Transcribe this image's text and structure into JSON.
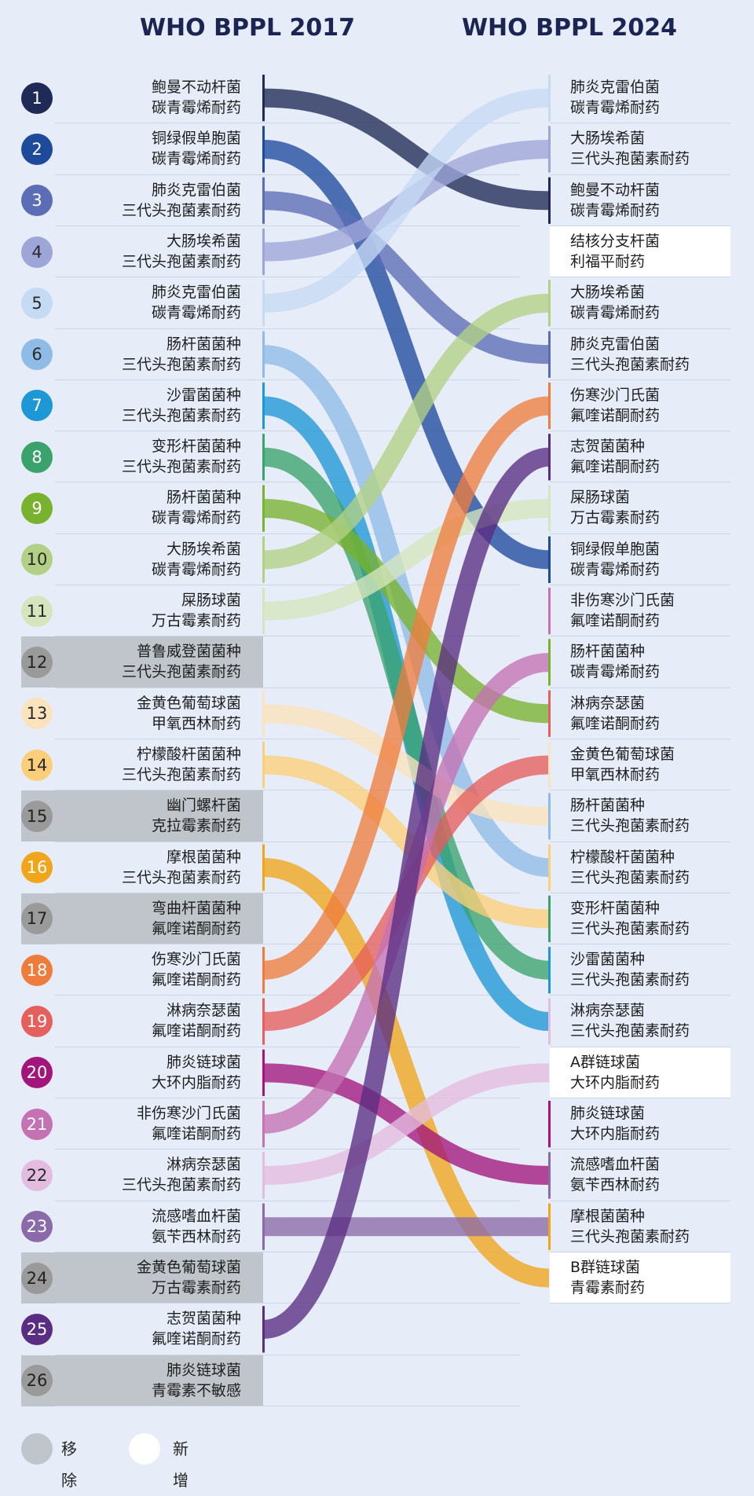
{
  "header": {
    "left_title": "WHO BPPL 2017",
    "right_title": "WHO BPPL 2024"
  },
  "left_items": [
    {
      "num": "1",
      "l1": "鲍曼不动杆菌",
      "l2": "碳青霉烯耐药",
      "color": "#1f2a56",
      "removed": false,
      "target": 3
    },
    {
      "num": "2",
      "l1": "铜绿假单胞菌",
      "l2": "碳青霉烯耐药",
      "color": "#1e4a9c",
      "removed": false,
      "target": 10
    },
    {
      "num": "3",
      "l1": "肺炎克雷伯菌",
      "l2": "三代头孢菌素耐药",
      "color": "#5b6db5",
      "removed": false,
      "target": 6
    },
    {
      "num": "4",
      "l1": "大肠埃希菌",
      "l2": "三代头孢菌素耐药",
      "color": "#9ea6d8",
      "removed": false,
      "target": 2
    },
    {
      "num": "5",
      "l1": "肺炎克雷伯菌",
      "l2": "碳青霉烯耐药",
      "color": "#c5daf3",
      "removed": false,
      "target": 1
    },
    {
      "num": "6",
      "l1": "肠杆菌菌种",
      "l2": "三代头孢菌素耐药",
      "color": "#8fbce6",
      "removed": false,
      "target": 16
    },
    {
      "num": "7",
      "l1": "沙雷菌菌种",
      "l2": "三代头孢菌素耐药",
      "color": "#1d97d5",
      "removed": false,
      "target": 19
    },
    {
      "num": "8",
      "l1": "变形杆菌菌种",
      "l2": "三代头孢菌素耐药",
      "color": "#3aa36b",
      "removed": false,
      "target": 18
    },
    {
      "num": "9",
      "l1": "肠杆菌菌种",
      "l2": "碳青霉烯耐药",
      "color": "#78b22e",
      "removed": false,
      "target": 13
    },
    {
      "num": "10",
      "l1": "大肠埃希菌",
      "l2": "碳青霉烯耐药",
      "color": "#b2d184",
      "removed": false,
      "target": 5
    },
    {
      "num": "11",
      "l1": "屎肠球菌",
      "l2": "万古霉素耐药",
      "color": "#d5e6be",
      "removed": false,
      "target": 9
    },
    {
      "num": "12",
      "l1": "普鲁威登菌菌种",
      "l2": "三代头孢菌素耐药",
      "color": "#9a9a9a",
      "removed": true,
      "target": null
    },
    {
      "num": "13",
      "l1": "金黄色葡萄球菌",
      "l2": "甲氧西林耐药",
      "color": "#fbe3bd",
      "removed": false,
      "target": 15
    },
    {
      "num": "14",
      "l1": "柠檬酸杆菌菌种",
      "l2": "三代头孢菌素耐药",
      "color": "#fbcf7a",
      "removed": false,
      "target": 17
    },
    {
      "num": "15",
      "l1": "幽门螺杆菌",
      "l2": "克拉霉素耐药",
      "color": "#9a9a9a",
      "removed": true,
      "target": null
    },
    {
      "num": "16",
      "l1": "摩根菌菌种",
      "l2": "三代头孢菌素耐药",
      "color": "#f0a51b",
      "removed": false,
      "target": 24
    },
    {
      "num": "17",
      "l1": "弯曲杆菌菌种",
      "l2": "氟喹诺酮耐药",
      "color": "#9a9a9a",
      "removed": true,
      "target": null
    },
    {
      "num": "18",
      "l1": "伤寒沙门氏菌",
      "l2": "氟喹诺酮耐药",
      "color": "#ee7d3d",
      "removed": false,
      "target": 7
    },
    {
      "num": "19",
      "l1": "淋病奈瑟菌",
      "l2": "氟喹诺酮耐药",
      "color": "#e55f5c",
      "removed": false,
      "target": 14
    },
    {
      "num": "20",
      "l1": "肺炎链球菌",
      "l2": "大环内脂耐药",
      "color": "#a2167b",
      "removed": false,
      "target": 22
    },
    {
      "num": "21",
      "l1": "非伤寒沙门氏菌",
      "l2": "氟喹诺酮耐药",
      "color": "#c472b3",
      "removed": false,
      "target": 12
    },
    {
      "num": "22",
      "l1": "淋病奈瑟菌",
      "l2": "三代头孢菌素耐药",
      "color": "#e4bcdf",
      "removed": false,
      "target": 20
    },
    {
      "num": "23",
      "l1": "流感嗜血杆菌",
      "l2": "氨苄西林耐药",
      "color": "#8a6aa8",
      "removed": false,
      "target": 23
    },
    {
      "num": "24",
      "l1": "金黄色葡萄球菌",
      "l2": "万古霉素耐药",
      "color": "#9a9a9a",
      "removed": true,
      "target": null
    },
    {
      "num": "25",
      "l1": "志贺菌菌种",
      "l2": "氟喹诺酮耐药",
      "color": "#5a2d82",
      "removed": false,
      "target": 8
    },
    {
      "num": "26",
      "l1": "肺炎链球菌",
      "l2": "青霉素不敏感",
      "color": "#9a9a9a",
      "removed": true,
      "target": null
    }
  ],
  "right_items": [
    {
      "l1": "肺炎克雷伯菌",
      "l2": "碳青霉烯耐药",
      "added": false,
      "color": "#c5daf3"
    },
    {
      "l1": "大肠埃希菌",
      "l2": "三代头孢菌素耐药",
      "added": false,
      "color": "#9ea6d8"
    },
    {
      "l1": "鲍曼不动杆菌",
      "l2": "碳青霉烯耐药",
      "added": false,
      "color": "#1f2a56"
    },
    {
      "l1": "结核分支杆菌",
      "l2": "利福平耐药",
      "added": true,
      "color": "#ffffff"
    },
    {
      "l1": "大肠埃希菌",
      "l2": "碳青霉烯耐药",
      "added": false,
      "color": "#b2d184"
    },
    {
      "l1": "肺炎克雷伯菌",
      "l2": "三代头孢菌素耐药",
      "added": false,
      "color": "#5b6db5"
    },
    {
      "l1": "伤寒沙门氏菌",
      "l2": "氟喹诺酮耐药",
      "added": false,
      "color": "#ee7d3d"
    },
    {
      "l1": "志贺菌菌种",
      "l2": "氟喹诺酮耐药",
      "added": false,
      "color": "#5a2d82"
    },
    {
      "l1": "屎肠球菌",
      "l2": "万古霉素耐药",
      "added": false,
      "color": "#d5e6be"
    },
    {
      "l1": "铜绿假单胞菌",
      "l2": "碳青霉烯耐药",
      "added": false,
      "color": "#1e4a9c"
    },
    {
      "l1": "非伤寒沙门氏菌",
      "l2": "氟喹诺酮耐药",
      "added": false,
      "color": "#c472b3"
    },
    {
      "l1": "肠杆菌菌种",
      "l2": "碳青霉烯耐药",
      "added": false,
      "color": "#78b22e"
    },
    {
      "l1": "淋病奈瑟菌",
      "l2": "氟喹诺酮耐药",
      "added": false,
      "color": "#e55f5c"
    },
    {
      "l1": "金黄色葡萄球菌",
      "l2": "甲氧西林耐药",
      "added": false,
      "color": "#fbe3bd"
    },
    {
      "l1": "肠杆菌菌种",
      "l2": "三代头孢菌素耐药",
      "added": false,
      "color": "#8fbce6"
    },
    {
      "l1": "柠檬酸杆菌菌种",
      "l2": "三代头孢菌素耐药",
      "added": false,
      "color": "#fbcf7a"
    },
    {
      "l1": "变形杆菌菌种",
      "l2": "三代头孢菌素耐药",
      "added": false,
      "color": "#3aa36b"
    },
    {
      "l1": "沙雷菌菌种",
      "l2": "三代头孢菌素耐药",
      "added": false,
      "color": "#1d97d5"
    },
    {
      "l1": "淋病奈瑟菌",
      "l2": "三代头孢菌素耐药",
      "added": false,
      "color": "#e4bcdf"
    },
    {
      "l1": "A群链球菌",
      "l2": "大环内脂耐药",
      "added": true,
      "color": "#ffffff"
    },
    {
      "l1": "肺炎链球菌",
      "l2": "大环内脂耐药",
      "added": false,
      "color": "#a2167b"
    },
    {
      "l1": "流感嗜血杆菌",
      "l2": "氨苄西林耐药",
      "added": false,
      "color": "#8a6aa8"
    },
    {
      "l1": "摩根菌菌种",
      "l2": "三代头孢菌素耐药",
      "added": false,
      "color": "#f0a51b"
    },
    {
      "l1": "B群链球菌",
      "l2": "青霉素耐药",
      "added": true,
      "color": "#ffffff"
    }
  ],
  "legend": {
    "removed_label": "移除",
    "added_label": "新增",
    "removed_color": "#bfc5cb",
    "added_color": "#ffffff"
  }
}
